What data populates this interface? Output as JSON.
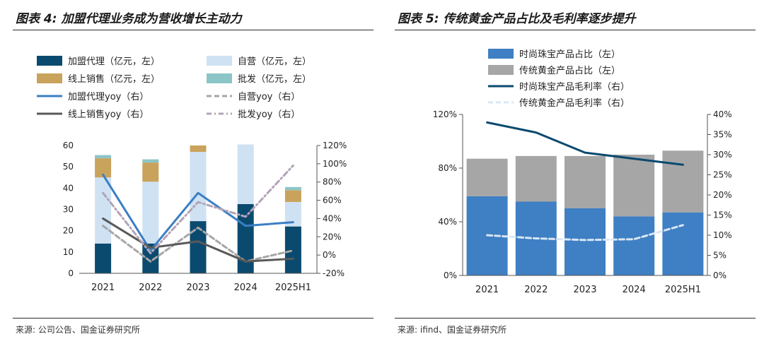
{
  "left": {
    "title": "图表 4:  加盟代理业务成为营收增长主动力",
    "source": "来源:  公司公告、国金证券研究所",
    "chart_data": {
      "type": "bar",
      "stacked": true,
      "categories": [
        "2021",
        "2022",
        "2023",
        "2024",
        "2025H1"
      ],
      "series": [
        {
          "name": "加盟代理（亿元，左）",
          "kind": "bar",
          "axis": "left",
          "color": "#0b4a6f",
          "values": [
            14,
            14,
            24.5,
            32.5,
            22
          ]
        },
        {
          "name": "自营（亿元，左）",
          "kind": "bar",
          "axis": "left",
          "color": "#cfe2f3",
          "values": [
            31,
            29,
            32.5,
            28,
            11.5
          ]
        },
        {
          "name": "线上销售（亿元，左）",
          "kind": "bar",
          "axis": "left",
          "color": "#c9a35c",
          "values": [
            9,
            9,
            3,
            0,
            5.5
          ]
        },
        {
          "name": "批发（亿元，左）",
          "kind": "bar",
          "axis": "left",
          "color": "#8cc5c8",
          "values": [
            1.5,
            1.5,
            0,
            0,
            1.5
          ]
        },
        {
          "name": "加盟代理yoy（右）",
          "kind": "line",
          "axis": "right",
          "color": "#3b7fc4",
          "dash": "solid",
          "values": [
            88,
            5,
            68,
            32,
            36
          ]
        },
        {
          "name": "自营yoy（右）",
          "kind": "line",
          "axis": "right",
          "color": "#a6a6a6",
          "dash": "dash",
          "values": [
            32,
            -7,
            30,
            -7,
            5
          ]
        },
        {
          "name": "线上销售yoy（右）",
          "kind": "line",
          "axis": "right",
          "color": "#595959",
          "dash": "solid",
          "values": [
            40,
            8,
            15,
            -7,
            -4
          ]
        },
        {
          "name": "批发yoy（右）",
          "kind": "line",
          "axis": "right",
          "color": "#b3a3b8",
          "dash": "dashdot",
          "values": [
            68,
            2,
            58,
            42,
            98
          ]
        }
      ],
      "y_left": {
        "min": 0,
        "max": 60,
        "ticks": [
          "0",
          "10",
          "20",
          "30",
          "40",
          "50",
          "60"
        ]
      },
      "y_right": {
        "min": -20,
        "max": 120,
        "ticks": [
          "-20%",
          "0%",
          "20%",
          "40%",
          "60%",
          "80%",
          "100%",
          "120%"
        ]
      },
      "legend_position": "top"
    }
  },
  "right": {
    "title": "图表 5:  传统黄金产品占比及毛利率逐步提升",
    "source": "来源:  ifind、国金证券研究所",
    "chart_data": {
      "type": "bar",
      "stacked": true,
      "categories": [
        "2021",
        "2022",
        "2023",
        "2024",
        "2025H1"
      ],
      "series": [
        {
          "name": "时尚珠宝产品占比（左）",
          "kind": "bar",
          "axis": "left",
          "color": "#3f7fc3",
          "values": [
            59,
            55,
            50,
            44,
            47
          ]
        },
        {
          "name": "传统黄金产品占比（左）",
          "kind": "bar",
          "axis": "left",
          "color": "#a6a6a6",
          "values": [
            28,
            34,
            39,
            46,
            46
          ]
        },
        {
          "name": "时尚珠宝产品毛利率（右）",
          "kind": "line",
          "axis": "right",
          "color": "#0b4a6f",
          "dash": "solid",
          "values": [
            38,
            35.5,
            30.5,
            29,
            27.5
          ]
        },
        {
          "name": "传统黄金产品毛利率（右）",
          "kind": "line",
          "axis": "right",
          "color": "#d9e7f5",
          "dash": "dash",
          "values": [
            10,
            9.2,
            8.8,
            9,
            12.5
          ]
        }
      ],
      "y_left": {
        "min": 0,
        "max": 120,
        "ticks": [
          "0%",
          "40%",
          "80%",
          "120%"
        ]
      },
      "y_right": {
        "min": 0,
        "max": 40,
        "ticks": [
          "0%",
          "5%",
          "10%",
          "15%",
          "20%",
          "25%",
          "30%",
          "35%",
          "40%"
        ]
      },
      "legend_position": "top"
    }
  }
}
